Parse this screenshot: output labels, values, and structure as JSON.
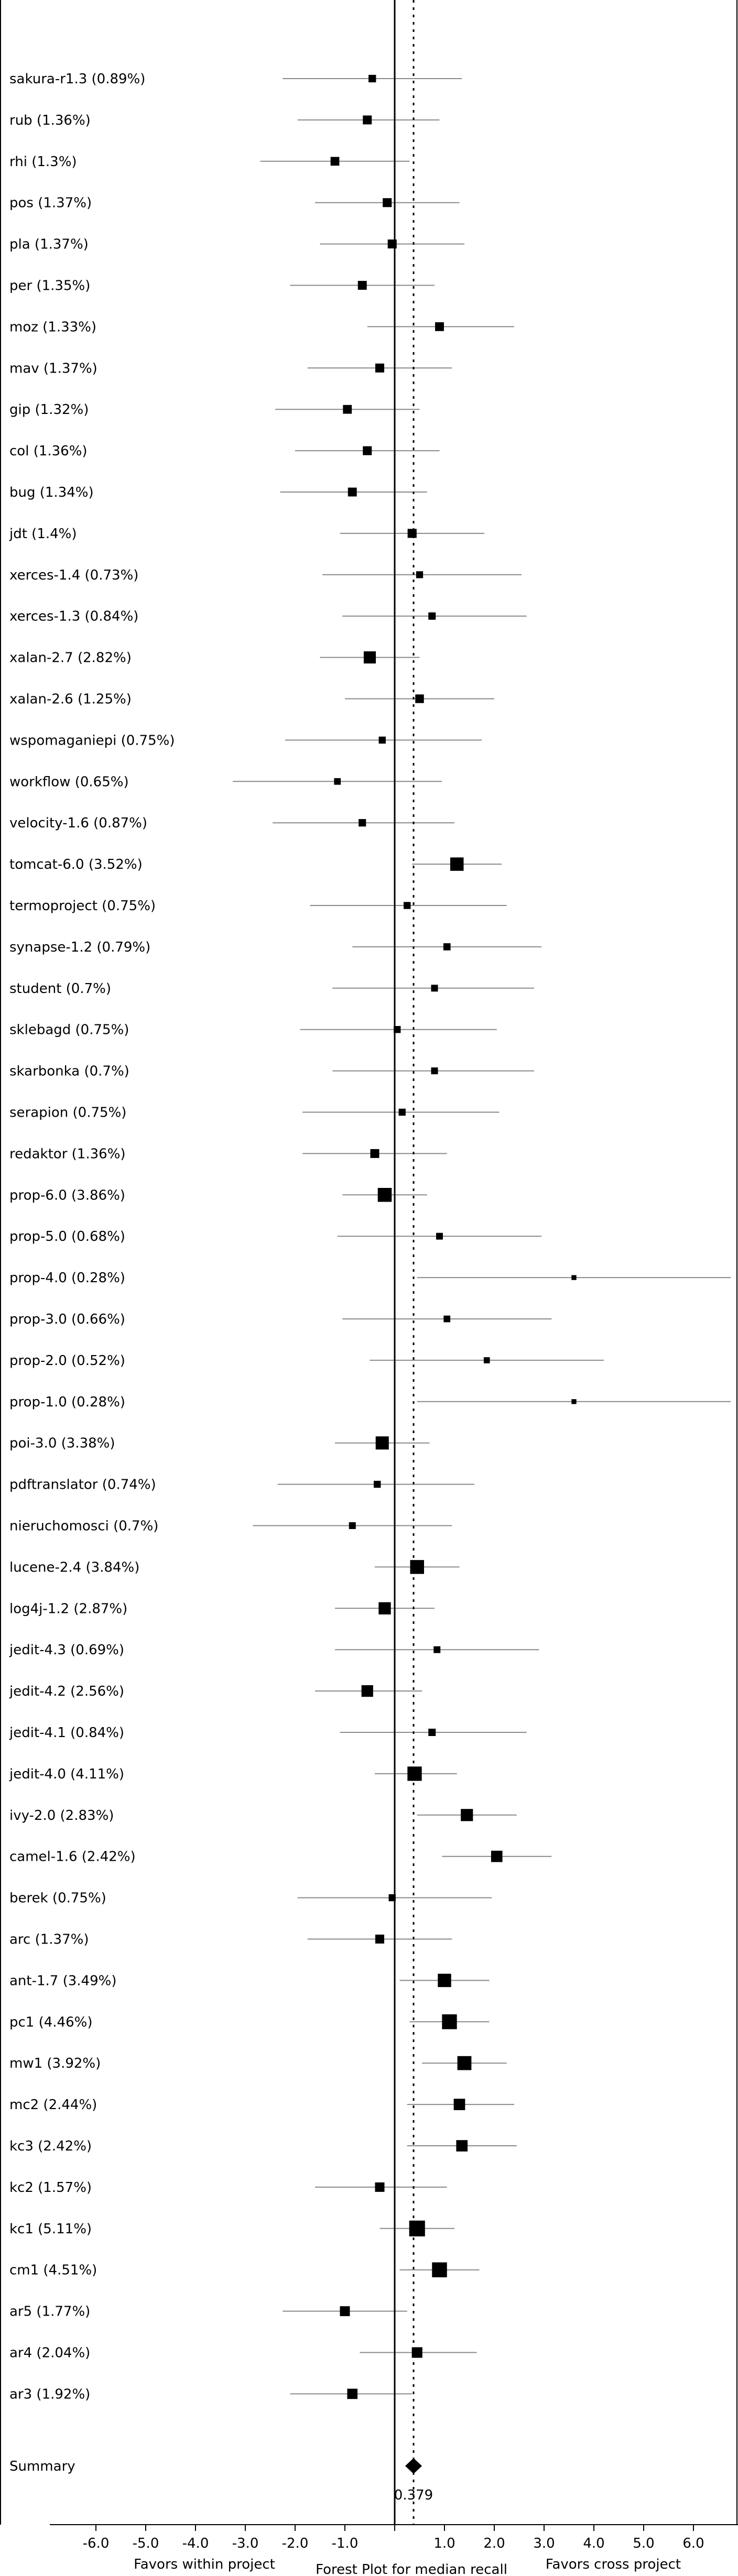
{
  "chart_data": {
    "type": "forest",
    "title": "Forest Plot for median recall",
    "left_caption": "Favors within project",
    "right_caption": "Favors cross project",
    "xlim": [
      -7.0,
      6.8
    ],
    "xticks": [
      -6.0,
      -5.0,
      -4.0,
      -3.0,
      -2.0,
      -1.0,
      0.0,
      1.0,
      2.0,
      3.0,
      4.0,
      5.0,
      6.0
    ],
    "xtick_labels": [
      "-6.0",
      "-5.0",
      "-4.0",
      "-3.0",
      "-2.0",
      "-1.0",
      "",
      "1.0",
      "2.0",
      "3.0",
      "4.0",
      "5.0",
      "6.0"
    ],
    "reference_line": 0.0,
    "summary_line": 0.379,
    "studies": [
      {
        "label": "sakura-r1.3 (0.89%)",
        "effect": -0.45,
        "ci": [
          -2.25,
          1.35
        ],
        "weight": 0.89
      },
      {
        "label": "rub (1.36%)",
        "effect": -0.55,
        "ci": [
          -1.95,
          0.9
        ],
        "weight": 1.36
      },
      {
        "label": "rhi (1.3%)",
        "effect": -1.2,
        "ci": [
          -2.7,
          0.3
        ],
        "weight": 1.3
      },
      {
        "label": "pos (1.37%)",
        "effect": -0.15,
        "ci": [
          -1.6,
          1.3
        ],
        "weight": 1.37
      },
      {
        "label": "pla (1.37%)",
        "effect": -0.05,
        "ci": [
          -1.5,
          1.4
        ],
        "weight": 1.37
      },
      {
        "label": "per (1.35%)",
        "effect": -0.65,
        "ci": [
          -2.1,
          0.8
        ],
        "weight": 1.35
      },
      {
        "label": "moz (1.33%)",
        "effect": 0.9,
        "ci": [
          -0.55,
          2.4
        ],
        "weight": 1.33
      },
      {
        "label": "mav (1.37%)",
        "effect": -0.3,
        "ci": [
          -1.75,
          1.15
        ],
        "weight": 1.37
      },
      {
        "label": "gip (1.32%)",
        "effect": -0.95,
        "ci": [
          -2.4,
          0.5
        ],
        "weight": 1.32
      },
      {
        "label": "col (1.36%)",
        "effect": -0.55,
        "ci": [
          -2.0,
          0.9
        ],
        "weight": 1.36
      },
      {
        "label": "bug (1.34%)",
        "effect": -0.85,
        "ci": [
          -2.3,
          0.65
        ],
        "weight": 1.34
      },
      {
        "label": "jdt (1.4%)",
        "effect": 0.35,
        "ci": [
          -1.1,
          1.8
        ],
        "weight": 1.4
      },
      {
        "label": "xerces-1.4 (0.73%)",
        "effect": 0.5,
        "ci": [
          -1.45,
          2.55
        ],
        "weight": 0.73
      },
      {
        "label": "xerces-1.3 (0.84%)",
        "effect": 0.75,
        "ci": [
          -1.05,
          2.65
        ],
        "weight": 0.84
      },
      {
        "label": "xalan-2.7 (2.82%)",
        "effect": -0.5,
        "ci": [
          -1.5,
          0.5
        ],
        "weight": 2.82
      },
      {
        "label": "xalan-2.6 (1.25%)",
        "effect": 0.5,
        "ci": [
          -1.0,
          2.0
        ],
        "weight": 1.25
      },
      {
        "label": "wspomaganiepi (0.75%)",
        "effect": -0.25,
        "ci": [
          -2.2,
          1.75
        ],
        "weight": 0.75
      },
      {
        "label": "workflow (0.65%)",
        "effect": -1.15,
        "ci": [
          -3.25,
          0.95
        ],
        "weight": 0.65
      },
      {
        "label": "velocity-1.6 (0.87%)",
        "effect": -0.65,
        "ci": [
          -2.45,
          1.2
        ],
        "weight": 0.87
      },
      {
        "label": "tomcat-6.0 (3.52%)",
        "effect": 1.25,
        "ci": [
          0.35,
          2.15
        ],
        "weight": 3.52
      },
      {
        "label": "termoproject (0.75%)",
        "effect": 0.25,
        "ci": [
          -1.7,
          2.25
        ],
        "weight": 0.75
      },
      {
        "label": "synapse-1.2 (0.79%)",
        "effect": 1.05,
        "ci": [
          -0.85,
          2.95
        ],
        "weight": 0.79
      },
      {
        "label": "student (0.7%)",
        "effect": 0.8,
        "ci": [
          -1.25,
          2.8
        ],
        "weight": 0.7
      },
      {
        "label": "sklebagd (0.75%)",
        "effect": 0.05,
        "ci": [
          -1.9,
          2.05
        ],
        "weight": 0.75
      },
      {
        "label": "skarbonka (0.7%)",
        "effect": 0.8,
        "ci": [
          -1.25,
          2.8
        ],
        "weight": 0.7
      },
      {
        "label": "serapion (0.75%)",
        "effect": 0.15,
        "ci": [
          -1.85,
          2.1
        ],
        "weight": 0.75
      },
      {
        "label": "redaktor (1.36%)",
        "effect": -0.4,
        "ci": [
          -1.85,
          1.05
        ],
        "weight": 1.36
      },
      {
        "label": "prop-6.0 (3.86%)",
        "effect": -0.2,
        "ci": [
          -1.05,
          0.65
        ],
        "weight": 3.86
      },
      {
        "label": "prop-5.0 (0.68%)",
        "effect": 0.9,
        "ci": [
          -1.15,
          2.95
        ],
        "weight": 0.68
      },
      {
        "label": "prop-4.0 (0.28%)",
        "effect": 3.6,
        "ci": [
          0.45,
          6.75
        ],
        "weight": 0.28
      },
      {
        "label": "prop-3.0 (0.66%)",
        "effect": 1.05,
        "ci": [
          -1.05,
          3.15
        ],
        "weight": 0.66
      },
      {
        "label": "prop-2.0 (0.52%)",
        "effect": 1.85,
        "ci": [
          -0.5,
          4.2
        ],
        "weight": 0.52
      },
      {
        "label": "prop-1.0 (0.28%)",
        "effect": 3.6,
        "ci": [
          0.45,
          6.75
        ],
        "weight": 0.28
      },
      {
        "label": "poi-3.0 (3.38%)",
        "effect": -0.25,
        "ci": [
          -1.2,
          0.7
        ],
        "weight": 3.38
      },
      {
        "label": "pdftranslator (0.74%)",
        "effect": -0.35,
        "ci": [
          -2.35,
          1.6
        ],
        "weight": 0.74
      },
      {
        "label": "nieruchomosci (0.7%)",
        "effect": -0.85,
        "ci": [
          -2.85,
          1.15
        ],
        "weight": 0.7
      },
      {
        "label": "lucene-2.4 (3.84%)",
        "effect": 0.45,
        "ci": [
          -0.4,
          1.3
        ],
        "weight": 3.84
      },
      {
        "label": "log4j-1.2 (2.87%)",
        "effect": -0.2,
        "ci": [
          -1.2,
          0.8
        ],
        "weight": 2.87
      },
      {
        "label": "jedit-4.3 (0.69%)",
        "effect": 0.85,
        "ci": [
          -1.2,
          2.9
        ],
        "weight": 0.69
      },
      {
        "label": "jedit-4.2 (2.56%)",
        "effect": -0.55,
        "ci": [
          -1.6,
          0.55
        ],
        "weight": 2.56
      },
      {
        "label": "jedit-4.1 (0.84%)",
        "effect": 0.75,
        "ci": [
          -1.1,
          2.65
        ],
        "weight": 0.84
      },
      {
        "label": "jedit-4.0 (4.11%)",
        "effect": 0.4,
        "ci": [
          -0.4,
          1.25
        ],
        "weight": 4.11
      },
      {
        "label": "ivy-2.0 (2.83%)",
        "effect": 1.45,
        "ci": [
          0.45,
          2.45
        ],
        "weight": 2.83
      },
      {
        "label": "camel-1.6 (2.42%)",
        "effect": 2.05,
        "ci": [
          0.95,
          3.15
        ],
        "weight": 2.42
      },
      {
        "label": "berek (0.75%)",
        "effect": -0.05,
        "ci": [
          -1.95,
          1.95
        ],
        "weight": 0.75
      },
      {
        "label": "arc (1.37%)",
        "effect": -0.3,
        "ci": [
          -1.75,
          1.15
        ],
        "weight": 1.37
      },
      {
        "label": "ant-1.7 (3.49%)",
        "effect": 1.0,
        "ci": [
          0.1,
          1.9
        ],
        "weight": 3.49
      },
      {
        "label": "pc1 (4.46%)",
        "effect": 1.1,
        "ci": [
          0.3,
          1.9
        ],
        "weight": 4.46
      },
      {
        "label": "mw1 (3.92%)",
        "effect": 1.4,
        "ci": [
          0.55,
          2.25
        ],
        "weight": 3.92
      },
      {
        "label": "mc2 (2.44%)",
        "effect": 1.3,
        "ci": [
          0.25,
          2.4
        ],
        "weight": 2.44
      },
      {
        "label": "kc3 (2.42%)",
        "effect": 1.35,
        "ci": [
          0.25,
          2.45
        ],
        "weight": 2.42
      },
      {
        "label": "kc2 (1.57%)",
        "effect": -0.3,
        "ci": [
          -1.6,
          1.05
        ],
        "weight": 1.57
      },
      {
        "label": "kc1 (5.11%)",
        "effect": 0.45,
        "ci": [
          -0.3,
          1.2
        ],
        "weight": 5.11
      },
      {
        "label": "cm1 (4.51%)",
        "effect": 0.9,
        "ci": [
          0.1,
          1.7
        ],
        "weight": 4.51
      },
      {
        "label": "ar5 (1.77%)",
        "effect": -1.0,
        "ci": [
          -2.25,
          0.25
        ],
        "weight": 1.77
      },
      {
        "label": "ar4 (2.04%)",
        "effect": 0.45,
        "ci": [
          -0.7,
          1.65
        ],
        "weight": 2.04
      },
      {
        "label": "ar3 (1.92%)",
        "effect": -0.85,
        "ci": [
          -2.1,
          0.35
        ],
        "weight": 1.92
      }
    ],
    "summary": {
      "label": "Summary",
      "effect": 0.379,
      "value_label": "0.379"
    }
  }
}
